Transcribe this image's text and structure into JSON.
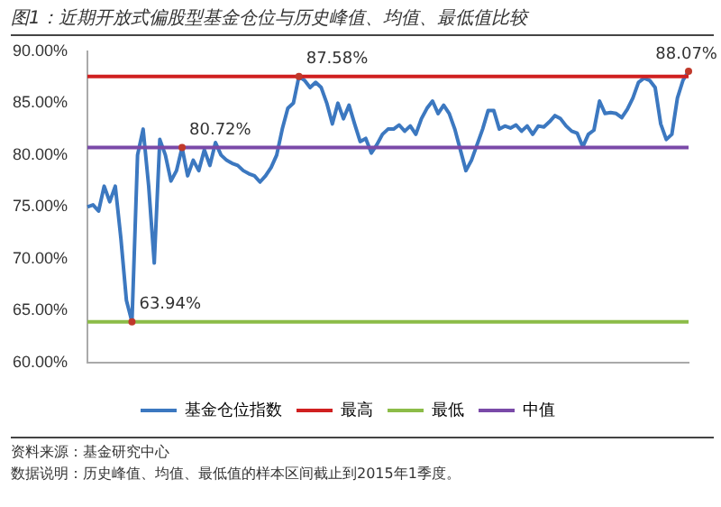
{
  "chart_data": {
    "type": "line",
    "title": "图1：近期开放式偏股型基金仓位与历史峰值、均值、最低值比较",
    "categories": [
      null,
      null,
      null,
      null,
      null,
      null,
      null,
      null,
      null,
      null,
      null,
      null,
      null,
      null,
      null,
      null,
      null,
      null,
      null,
      null,
      null,
      null,
      null,
      null,
      null,
      null,
      null,
      null,
      null,
      null,
      null,
      null,
      null,
      null,
      null,
      null,
      null,
      null,
      null,
      null,
      null,
      null,
      null,
      null,
      null,
      null,
      null,
      null,
      null,
      null,
      null,
      null,
      null,
      null,
      null,
      null,
      null,
      null,
      null,
      null,
      null,
      null,
      null,
      null,
      null,
      null,
      null,
      null,
      null,
      null,
      null,
      null,
      null,
      null,
      null,
      null,
      null,
      null,
      null,
      null,
      null,
      null,
      null,
      null,
      null,
      null,
      null,
      null,
      null,
      null,
      null,
      null,
      null,
      null,
      null,
      null,
      null,
      null,
      null,
      null,
      null,
      null,
      null,
      null,
      null,
      null,
      null,
      null,
      null
    ],
    "series": [
      {
        "name": "基金仓位指数",
        "color": "#3c78c0",
        "values": [
          75,
          75.2,
          74.6,
          77,
          75.5,
          77,
          72,
          66,
          63.94,
          80,
          82.5,
          77,
          69.6,
          81.5,
          80,
          77.5,
          78.5,
          80.72,
          78,
          79.5,
          78.5,
          80.5,
          79,
          81.2,
          80,
          79.5,
          79.2,
          79,
          78.5,
          78.2,
          78,
          77.4,
          78,
          78.8,
          80,
          82.5,
          84.5,
          85,
          87.58,
          87.2,
          86.5,
          87,
          86.5,
          85,
          83,
          85,
          83.5,
          84.8,
          83,
          81.3,
          81.6,
          80.2,
          81,
          82,
          82.5,
          82.5,
          82.9,
          82.3,
          82.8,
          82,
          83.5,
          84.5,
          85.2,
          84,
          84.8,
          84,
          82.5,
          80.5,
          78.5,
          79.5,
          81,
          82.5,
          84.3,
          84.3,
          82.5,
          82.8,
          82.6,
          82.9,
          82.3,
          82.8,
          82,
          82.8,
          82.7,
          83.2,
          83.8,
          83.5,
          82.8,
          82.3,
          82.1,
          80.8,
          82,
          82.4,
          85.2,
          84,
          84.1,
          84,
          83.6,
          84.4,
          85.5,
          87,
          87.4,
          87.2,
          86.5,
          83,
          81.5,
          82,
          85.5,
          87.2,
          88.07
        ]
      }
    ],
    "ylim": [
      60,
      90
    ],
    "yticks": [
      {
        "value": 60,
        "label": "60.00%"
      },
      {
        "value": 65,
        "label": "65.00%"
      },
      {
        "value": 70,
        "label": "70.00%"
      },
      {
        "value": 75,
        "label": "75.00%"
      },
      {
        "value": 80,
        "label": "80.00%"
      },
      {
        "value": 85,
        "label": "85.00%"
      },
      {
        "value": 90,
        "label": "90.00%"
      }
    ],
    "ref_lines": [
      {
        "axis": "y",
        "value": 87.58,
        "label": "最高",
        "color": "#d02020"
      },
      {
        "axis": "y",
        "value": 63.94,
        "label": "最低",
        "color": "#8cbc48"
      },
      {
        "axis": "y",
        "value": 80.72,
        "label": "中值",
        "color": "#7a4aa8"
      }
    ],
    "annotations": [
      {
        "text": "87.58%",
        "y": 87.58
      },
      {
        "text": "80.72%",
        "y": 80.72
      },
      {
        "text": "63.94%",
        "y": 63.94
      },
      {
        "text": "88.07%",
        "y": 88.07
      },
      "资料来源：基金研究中心",
      "数据说明：历史峰值、均值、最低值的样本区间截止到2015年1季度。"
    ],
    "grid": false,
    "legend": "bottom",
    "marker": "none",
    "line_style": "solid"
  }
}
